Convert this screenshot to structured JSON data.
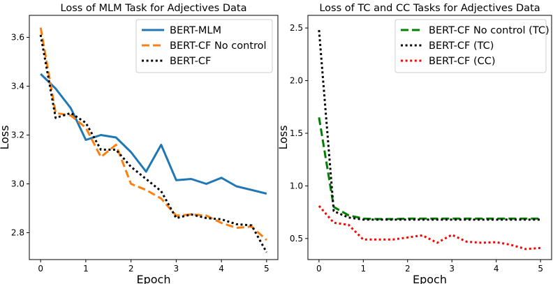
{
  "chart_data": [
    {
      "type": "line",
      "title": "Loss of MLM Task for Adjectives Data",
      "xlabel": "Epoch",
      "ylabel": "Loss",
      "xlim": [
        -0.25,
        5.25
      ],
      "ylim": [
        2.69,
        3.69
      ],
      "xticks": [
        0,
        1,
        2,
        3,
        4,
        5
      ],
      "yticks": [
        2.8,
        3.0,
        3.2,
        3.4,
        3.6
      ],
      "ytick_labels": [
        "2.8",
        "3.0",
        "3.2",
        "3.4",
        "3.6"
      ],
      "legend_position": "top-right",
      "series": [
        {
          "name": "BERT-MLM",
          "color": "#1f77b4",
          "dash": "solid",
          "x": [
            0,
            0.333,
            0.667,
            1,
            1.333,
            1.667,
            2,
            2.333,
            2.667,
            3,
            3.333,
            3.667,
            4,
            4.333,
            4.667,
            5
          ],
          "values": [
            3.45,
            3.39,
            3.31,
            3.18,
            3.2,
            3.19,
            3.13,
            3.05,
            3.16,
            3.015,
            3.02,
            3.0,
            3.025,
            2.99,
            2.975,
            2.96
          ]
        },
        {
          "name": "BERT-CF No control",
          "color": "#ff7f0e",
          "dash": "dashed",
          "x": [
            0,
            0.333,
            0.667,
            1,
            1.333,
            1.667,
            2,
            2.333,
            2.667,
            3,
            3.333,
            3.667,
            4,
            4.333,
            4.667,
            5
          ],
          "values": [
            3.64,
            3.29,
            3.28,
            3.23,
            3.11,
            3.16,
            3.0,
            2.975,
            2.94,
            2.87,
            2.875,
            2.87,
            2.84,
            2.82,
            2.825,
            2.77
          ]
        },
        {
          "name": "BERT-CF",
          "color": "#000000",
          "dash": "dotted",
          "x": [
            0,
            0.333,
            0.667,
            1,
            1.333,
            1.667,
            2,
            2.333,
            2.667,
            3,
            3.333,
            3.667,
            4,
            4.333,
            4.667,
            5
          ],
          "values": [
            3.61,
            3.27,
            3.29,
            3.25,
            3.14,
            3.14,
            3.07,
            3.02,
            2.97,
            2.86,
            2.875,
            2.86,
            2.855,
            2.835,
            2.83,
            2.72
          ]
        }
      ]
    },
    {
      "type": "line",
      "title": "Loss of TC and CC Tasks for Adjectives Data",
      "xlabel": "Epoch",
      "ylabel": "Loss",
      "xlim": [
        -0.25,
        5.25
      ],
      "ylim": [
        0.3,
        2.62
      ],
      "xticks": [
        0,
        1,
        2,
        3,
        4,
        5
      ],
      "yticks": [
        0.5,
        1.0,
        1.5,
        2.0,
        2.5
      ],
      "ytick_labels": [
        "0.5",
        "1.0",
        "1.5",
        "2.0",
        "2.5"
      ],
      "legend_position": "top-right",
      "series": [
        {
          "name": "BERT-CF No control (TC)",
          "color": "#008000",
          "dash": "dashed",
          "x": [
            0,
            0.333,
            0.667,
            1,
            1.333,
            1.667,
            2,
            2.333,
            2.667,
            3,
            3.333,
            3.667,
            4,
            4.333,
            4.667,
            5
          ],
          "values": [
            1.65,
            0.8,
            0.72,
            0.69,
            0.685,
            0.685,
            0.69,
            0.69,
            0.69,
            0.69,
            0.69,
            0.69,
            0.69,
            0.69,
            0.69,
            0.69
          ]
        },
        {
          "name": "BERT-CF (TC)",
          "color": "#000000",
          "dash": "dotted",
          "x": [
            0,
            0.333,
            0.667,
            1,
            1.333,
            1.667,
            2,
            2.333,
            2.667,
            3,
            3.333,
            3.667,
            4,
            4.333,
            4.667,
            5
          ],
          "values": [
            2.48,
            0.76,
            0.7,
            0.68,
            0.68,
            0.68,
            0.68,
            0.68,
            0.68,
            0.68,
            0.68,
            0.68,
            0.68,
            0.68,
            0.68,
            0.68
          ]
        },
        {
          "name": "BERT-CF (CC)",
          "color": "#ff0000",
          "dash": "dotted",
          "x": [
            0,
            0.333,
            0.667,
            1,
            1.333,
            1.667,
            2,
            2.333,
            2.667,
            3,
            3.333,
            3.667,
            4,
            4.333,
            4.667,
            5
          ],
          "values": [
            0.81,
            0.65,
            0.63,
            0.49,
            0.49,
            0.49,
            0.51,
            0.53,
            0.46,
            0.535,
            0.47,
            0.46,
            0.465,
            0.44,
            0.4,
            0.41
          ]
        }
      ]
    }
  ]
}
